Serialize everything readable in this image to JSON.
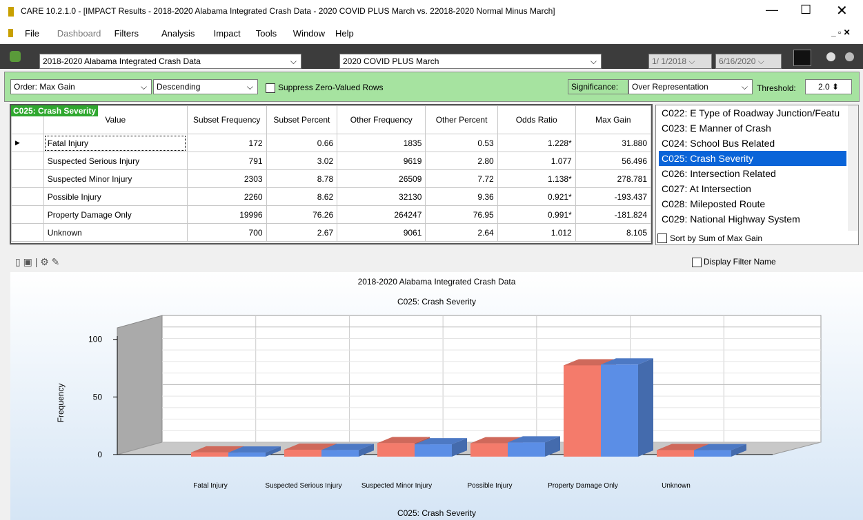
{
  "window": {
    "title": "CARE 10.2.1.0 - [IMPACT Results - 2018-2020 Alabama Integrated Crash Data - 2020 COVID PLUS March vs. 22018-2020 Normal Minus March]"
  },
  "menu": [
    "File",
    "Dashboard",
    "Filters",
    "Analysis",
    "Impact",
    "Tools",
    "Window",
    "Help"
  ],
  "toolbar": {
    "database": "2018-2020 Alabama Integrated Crash Data",
    "filter": "2020 COVID PLUS March",
    "date_from": "1/ 1/2018",
    "date_to": "6/16/2020"
  },
  "options": {
    "order_label": "Order:",
    "order": "Max Gain",
    "direction": "Descending",
    "suppress": "Suppress Zero-Valued Rows",
    "significance_label": "Significance:",
    "significance": "Over Representation",
    "threshold_label": "Threshold:",
    "threshold": "2.0"
  },
  "table": {
    "caption": "C025: Crash Severity",
    "columns": [
      "Value",
      "Subset Frequency",
      "Subset Percent",
      "Other Frequency",
      "Other Percent",
      "Odds Ratio",
      "Max Gain"
    ],
    "rows": [
      [
        "Fatal Injury",
        "172",
        "0.66",
        "1835",
        "0.53",
        "1.228*",
        "31.880"
      ],
      [
        "Suspected Serious Injury",
        "791",
        "3.02",
        "9619",
        "2.80",
        "1.077",
        "56.496"
      ],
      [
        "Suspected Minor Injury",
        "2303",
        "8.78",
        "26509",
        "7.72",
        "1.138*",
        "278.781"
      ],
      [
        "Possible Injury",
        "2260",
        "8.62",
        "32130",
        "9.36",
        "0.921*",
        "-193.437"
      ],
      [
        "Property Damage Only",
        "19996",
        "76.26",
        "264247",
        "76.95",
        "0.991*",
        "-181.824"
      ],
      [
        "Unknown",
        "700",
        "2.67",
        "9061",
        "2.64",
        "1.012",
        "8.105"
      ]
    ]
  },
  "variables": {
    "items": [
      "C022: E Type of Roadway Junction/Featu",
      "C023: E Manner of Crash",
      "C024: School Bus Related",
      "C025: Crash Severity",
      "C026: Intersection Related",
      "C027: At Intersection",
      "C028: Mileposted Route",
      "C029: National Highway System"
    ],
    "selected": 3,
    "sort_label": "Sort by Sum of Max Gain"
  },
  "chart_panel": {
    "display_filter": "Display Filter Name"
  },
  "chart_data": {
    "type": "bar3d",
    "title": "2018-2020 Alabama Integrated Crash Data",
    "subtitle": "C025: Crash Severity",
    "ylabel": "Frequency",
    "xlabel": "C025: Crash Severity",
    "categories": [
      "Fatal Injury",
      "Suspected Serious Injury",
      "Suspected Minor Injury",
      "Possible Injury",
      "Property Damage Only",
      "Unknown"
    ],
    "series": [
      {
        "color": "#f47b6b",
        "values": [
          0.66,
          3.02,
          8.78,
          8.62,
          76.26,
          2.67
        ]
      },
      {
        "color": "#5b8ee6",
        "values": [
          0.53,
          2.8,
          7.72,
          9.36,
          76.95,
          2.64
        ]
      }
    ],
    "ylim": [
      0,
      110
    ],
    "yticks": [
      0,
      50,
      100
    ],
    "grid": true
  }
}
